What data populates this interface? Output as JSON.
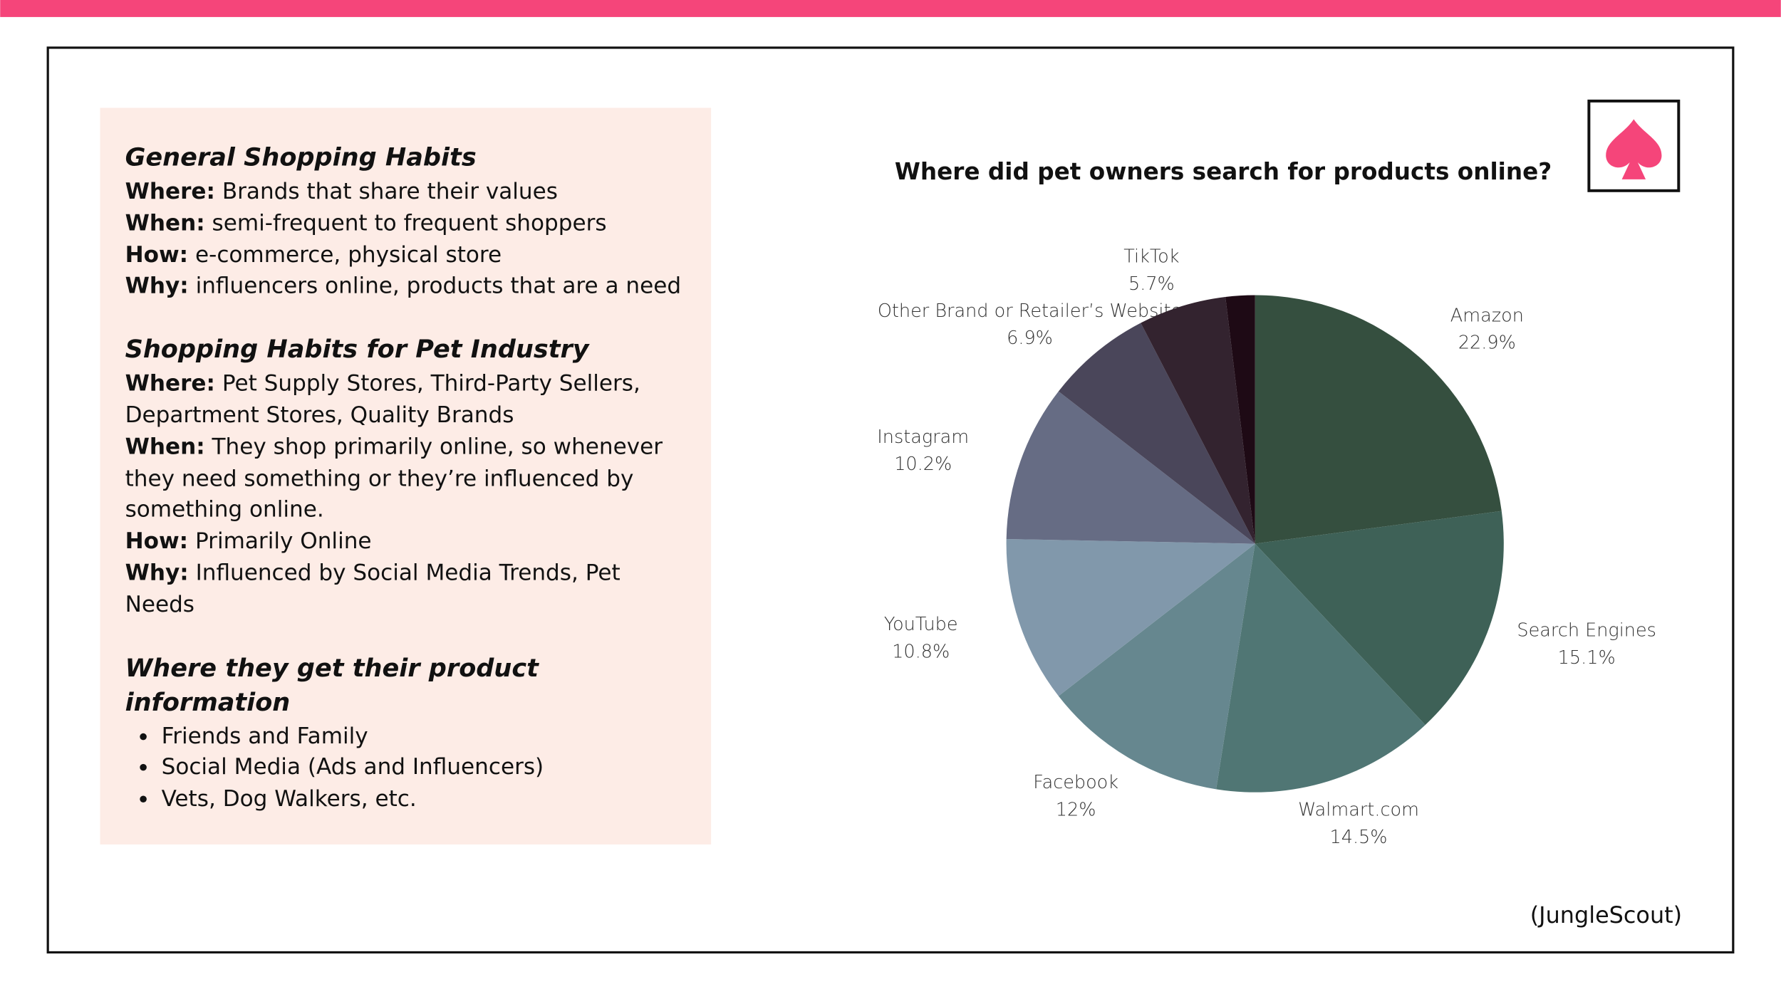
{
  "panel": {
    "sections": [
      {
        "heading": "General Shopping Habits",
        "items": [
          {
            "label": "Where:",
            "text": "Brands that share their values"
          },
          {
            "label": "When:",
            "text": "semi-frequent to frequent shoppers"
          },
          {
            "label": "How:",
            "text": "e-commerce, physical store"
          },
          {
            "label": "Why:",
            "text": "influencers online, products that are a need"
          }
        ]
      },
      {
        "heading": "Shopping Habits for Pet Industry",
        "items": [
          {
            "label": "Where:",
            "text": "Pet Supply Stores, Third-Party Sellers, Department Stores, Quality Brands"
          },
          {
            "label": "When:",
            "text": "They shop primarily online, so whenever they need something or they’re influenced by something online."
          },
          {
            "label": "How:",
            "text": "Primarily Online"
          },
          {
            "label": "Why:",
            "text": "Influenced by Social Media Trends, Pet Needs"
          }
        ]
      },
      {
        "heading": "Where they get their product information",
        "bullets": [
          "Friends and Family",
          "Social Media (Ads and Influencers)",
          "Vets, Dog Walkers, etc."
        ]
      }
    ]
  },
  "source": "(JungleScout)",
  "chart_data": {
    "type": "pie",
    "title": "Where did pet owners search for products online?",
    "categories": [
      "Amazon",
      "Search Engines",
      "Walmart.com",
      "Facebook",
      "YouTube",
      "Instagram",
      "Other Brand or Retailer’s Website",
      "TikTok",
      null
    ],
    "values": [
      22.9,
      15.1,
      14.5,
      12,
      10.8,
      10.2,
      6.9,
      5.7,
      1.9
    ],
    "value_labels": [
      "22.9%",
      "15.1%",
      "14.5%",
      "12%",
      "10.8%",
      "10.2%",
      "6.9%",
      "5.7%",
      null
    ],
    "colors": [
      "#354f3f",
      "#3e6157",
      "#507674",
      "#66878f",
      "#8198ab",
      "#666c84",
      "#4a465a",
      "#33232f",
      "#1e0a15"
    ]
  }
}
